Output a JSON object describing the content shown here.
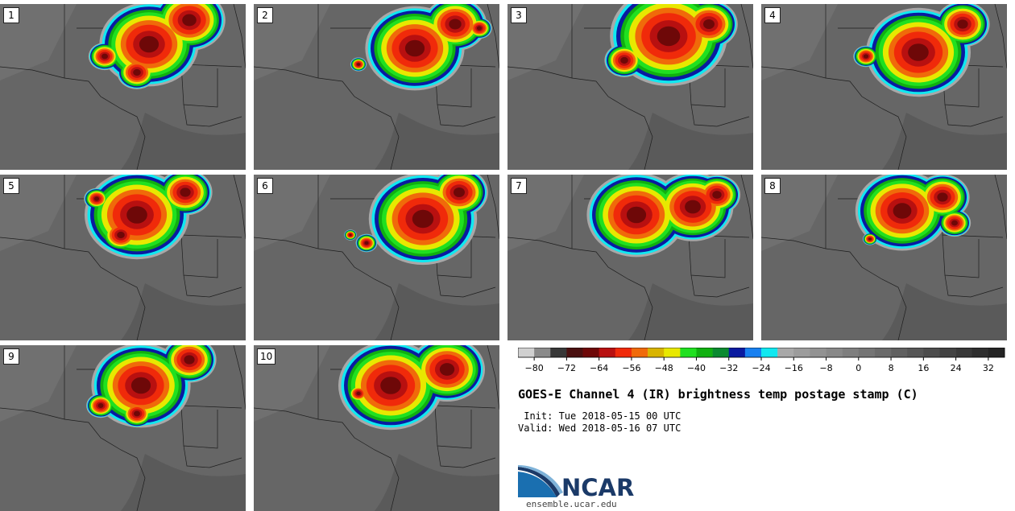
{
  "panels": [
    {
      "label": "1"
    },
    {
      "label": "2"
    },
    {
      "label": "3"
    },
    {
      "label": "4"
    },
    {
      "label": "5"
    },
    {
      "label": "6"
    },
    {
      "label": "7"
    },
    {
      "label": "8"
    },
    {
      "label": "9"
    },
    {
      "label": "10"
    }
  ],
  "colorbar": {
    "tick_labels": [
      "−80",
      "−72",
      "−64",
      "−56",
      "−48",
      "−40",
      "−32",
      "−24",
      "−16",
      "−8",
      "0",
      "8",
      "16",
      "24",
      "32"
    ],
    "colors": [
      "#d0d0d0",
      "#8a8a8a",
      "#383838",
      "#4a1010",
      "#6e0808",
      "#b81010",
      "#f02a0a",
      "#f06a0a",
      "#d8b400",
      "#e8e800",
      "#20e020",
      "#10b010",
      "#0a8a30",
      "#0a1aa0",
      "#1880f0",
      "#10e8f0",
      "#a8a8a8",
      "#9c9c9c",
      "#929292",
      "#888888",
      "#7e7e7e",
      "#747474",
      "#6a6a6a",
      "#606060",
      "#565656",
      "#4c4c4c",
      "#424242",
      "#383838",
      "#2e2e2e",
      "#242424"
    ]
  },
  "title": "GOES-E Channel 4 (IR) brightness temp postage stamp (C)",
  "init": " Init: Tue 2018-05-15 00 UTC",
  "valid": "Valid: Wed 2018-05-16 07 UTC",
  "logo": {
    "text": "NCAR",
    "url": "ensemble.ucar.edu",
    "color": "#1b3a68"
  }
}
